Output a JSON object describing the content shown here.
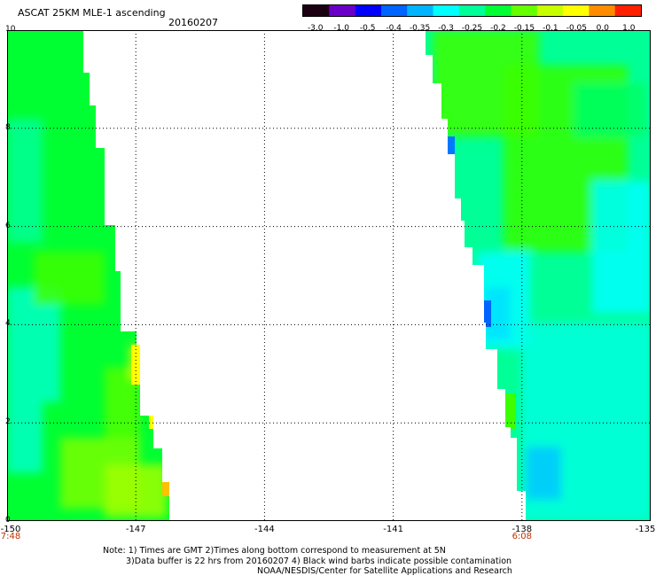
{
  "header": {
    "title": "ASCAT 25KM MLE-1 ascending",
    "date": "20160207"
  },
  "colorbar": {
    "ticks": [
      "-3.0",
      "-1.0",
      "-0.5",
      "-0.4",
      "-0.35",
      "-0.3",
      "-0.25",
      "-0.2",
      "-0.15",
      "-0.1",
      "-0.05",
      "0.0",
      "1.0"
    ],
    "colors": [
      "#1a0010",
      "#6a00c8",
      "#0000ff",
      "#0064ff",
      "#00b4ff",
      "#00ffff",
      "#00ff96",
      "#00ff32",
      "#64ff00",
      "#c8ff00",
      "#ffff00",
      "#ff8c00",
      "#ff2000"
    ]
  },
  "map": {
    "y_axis": {
      "min": 0,
      "max": 10,
      "labels": [
        "10",
        "8",
        "6",
        "4",
        "2",
        "0"
      ]
    },
    "x_axis": {
      "min": -150,
      "max": -135,
      "labels": [
        "-150",
        "-147",
        "-144",
        "-141",
        "-138",
        "-135"
      ]
    },
    "time_labels": [
      {
        "text": "7:48",
        "lon": -150
      },
      {
        "text": "6:08",
        "lon": -138
      }
    ],
    "swaths": [
      {
        "name": "west",
        "dominant_color": "#00ff32"
      },
      {
        "name": "east",
        "dominant_color": "#00ff96"
      }
    ]
  },
  "notes": {
    "line1": "Note: 1) Times are GMT 2)Times along bottom correspond to measurement at 5N",
    "line2": "3)Data buffer is 22 hrs from 20160207 4) Black wind barbs indicate possible contamination",
    "line3": "NOAA/NESDIS/Center for Satellite Applications and Research"
  }
}
